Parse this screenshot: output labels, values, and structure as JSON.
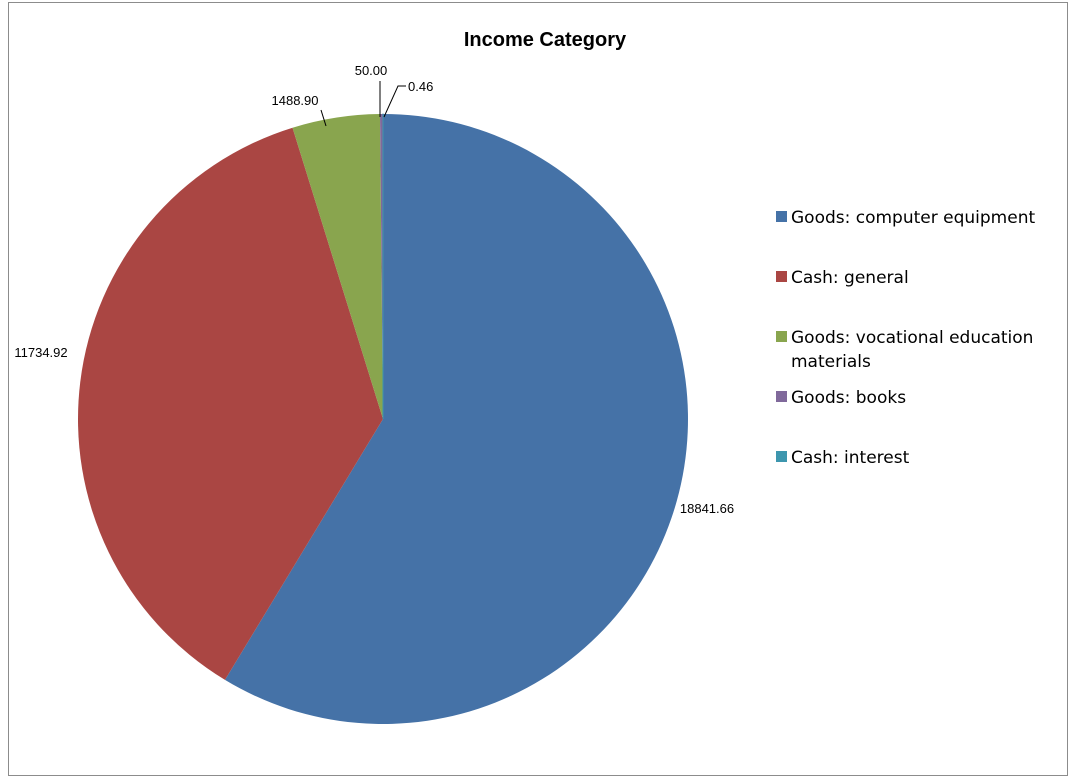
{
  "chart_data": {
    "type": "pie",
    "title": "Income Category",
    "legend_position": "right",
    "slices": [
      {
        "label": "Goods: computer equipment",
        "value": 18841.66,
        "value_label": "18841.66",
        "color": "#4572A7"
      },
      {
        "label": "Cash: general",
        "value": 11734.92,
        "value_label": "11734.92",
        "color": "#AA4643"
      },
      {
        "label": "Goods: vocational education materials",
        "value": 1488.9,
        "value_label": "1488.90",
        "color": "#89A54E"
      },
      {
        "label": "Goods: books",
        "value": 50.0,
        "value_label": "50.00",
        "color": "#80699B"
      },
      {
        "label": "Cash: interest",
        "value": 0.46,
        "value_label": "0.46",
        "color": "#3D96AE"
      }
    ],
    "legend_lines": [
      [
        "Goods: computer equipment"
      ],
      [
        "Cash: general"
      ],
      [
        "Goods: vocational education",
        "materials"
      ],
      [
        "Goods: books"
      ],
      [
        "Cash: interest"
      ]
    ]
  }
}
